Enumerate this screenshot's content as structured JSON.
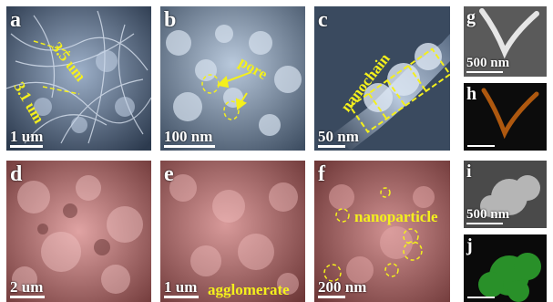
{
  "panels": {
    "a": {
      "label": "a",
      "scale": "1 um",
      "measure_1": "3.5 um",
      "measure_2": "3.1 um"
    },
    "b": {
      "label": "b",
      "scale": "100 nm",
      "annotation": "pore"
    },
    "c": {
      "label": "c",
      "scale": "50 nm",
      "annotation": "nanochain"
    },
    "d": {
      "label": "d",
      "scale": "2 um"
    },
    "e": {
      "label": "e",
      "scale": "1 um",
      "annotation": "agglomerate"
    },
    "f": {
      "label": "f",
      "scale": "200 nm",
      "annotation": "nanoparticle"
    },
    "g": {
      "label": "g",
      "scale": "500 nm"
    },
    "h": {
      "label": "h"
    },
    "i": {
      "label": "i",
      "scale": "500 nm"
    },
    "j": {
      "label": "j"
    }
  },
  "colors": {
    "annotation_yellow": "#f4f01c",
    "sem_blue": "#6a84a6",
    "sem_red": "#b76a6a",
    "map_orange": "#c06010",
    "map_green": "#2fa82f"
  }
}
